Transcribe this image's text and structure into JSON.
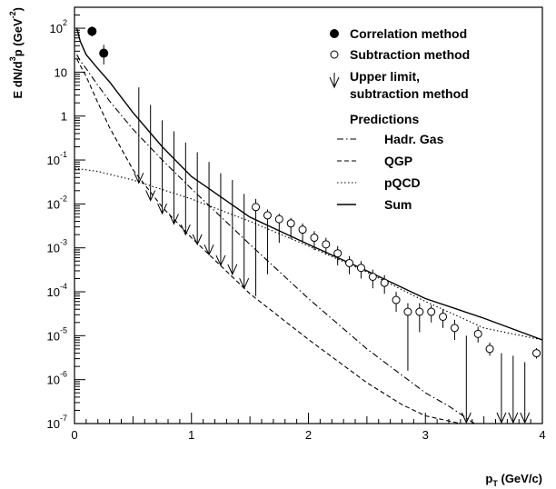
{
  "chart_data": {
    "type": "scatter",
    "xlabel": {
      "main": "p",
      "sub": "T",
      "units": "(GeV/c)"
    },
    "ylabel": {
      "prefix": "E dN/d",
      "sup1": "3",
      "mid": "p  (GeV",
      "sup2": "-2",
      "suffix": ")"
    },
    "xlim": [
      0,
      4
    ],
    "ylim": [
      1e-07,
      300
    ],
    "y_scale": "log",
    "x_ticks": [
      0,
      1,
      2,
      3,
      4
    ],
    "y_ticks": [
      {
        "value": 100,
        "base": "10",
        "exp": "2"
      },
      {
        "value": 10,
        "base": "10",
        "exp": ""
      },
      {
        "value": 1,
        "base": "1",
        "exp": ""
      },
      {
        "value": 0.1,
        "base": "10",
        "exp": "-1"
      },
      {
        "value": 0.01,
        "base": "10",
        "exp": "-2"
      },
      {
        "value": 0.001,
        "base": "10",
        "exp": "-3"
      },
      {
        "value": 0.0001,
        "base": "10",
        "exp": "-4"
      },
      {
        "value": 1e-05,
        "base": "10",
        "exp": "-5"
      },
      {
        "value": 1e-06,
        "base": "10",
        "exp": "-6"
      },
      {
        "value": 1e-07,
        "base": "10",
        "exp": "-7"
      }
    ],
    "grid": false,
    "legend_position": "top-right",
    "legend": {
      "correlation": "Correlation method",
      "subtraction": "Subtraction method",
      "upper_limit_line1": "Upper limit,",
      "upper_limit_line2": "subtraction method",
      "predictions_header": "Predictions",
      "hadr_gas": "Hadr. Gas",
      "qgp": "QGP",
      "pqcd": "pQCD",
      "sum": "Sum"
    },
    "series": [
      {
        "name": "Correlation method",
        "marker": "filled-circle",
        "points": [
          {
            "x": 0.15,
            "y": 85,
            "ylo": 65,
            "yhi": 110
          },
          {
            "x": 0.25,
            "y": 27,
            "ylo": 15,
            "yhi": 42
          }
        ]
      },
      {
        "name": "Subtraction method",
        "marker": "open-circle",
        "points": [
          {
            "x": 1.55,
            "y": 0.0085,
            "ylo": 8e-05,
            "yhi": 0.013
          },
          {
            "x": 1.65,
            "y": 0.0055,
            "ylo": 0.00025,
            "yhi": 0.0075
          },
          {
            "x": 1.75,
            "y": 0.0045,
            "ylo": 0.0013,
            "yhi": 0.006
          },
          {
            "x": 1.85,
            "y": 0.0036,
            "ylo": 0.0016,
            "yhi": 0.0048
          },
          {
            "x": 1.95,
            "y": 0.0026,
            "ylo": 0.0014,
            "yhi": 0.0036
          },
          {
            "x": 2.05,
            "y": 0.0017,
            "ylo": 0.0009,
            "yhi": 0.0024
          },
          {
            "x": 2.15,
            "y": 0.0012,
            "ylo": 0.0007,
            "yhi": 0.0017
          },
          {
            "x": 2.25,
            "y": 0.00075,
            "ylo": 0.0004,
            "yhi": 0.0011
          },
          {
            "x": 2.35,
            "y": 0.00045,
            "ylo": 0.00025,
            "yhi": 0.00065
          },
          {
            "x": 2.45,
            "y": 0.00035,
            "ylo": 0.0002,
            "yhi": 0.0005
          },
          {
            "x": 2.55,
            "y": 0.00022,
            "ylo": 0.00012,
            "yhi": 0.00032
          },
          {
            "x": 2.65,
            "y": 0.00016,
            "ylo": 9e-05,
            "yhi": 0.00024
          },
          {
            "x": 2.75,
            "y": 6.5e-05,
            "ylo": 3.5e-05,
            "yhi": 0.0001
          },
          {
            "x": 2.85,
            "y": 3.5e-05,
            "ylo": 1.6e-06,
            "yhi": 5.5e-05
          },
          {
            "x": 2.95,
            "y": 3.5e-05,
            "ylo": 1.2e-05,
            "yhi": 5.5e-05
          },
          {
            "x": 3.05,
            "y": 3.5e-05,
            "ylo": 2e-05,
            "yhi": 5e-05
          },
          {
            "x": 3.15,
            "y": 2.7e-05,
            "ylo": 1.5e-05,
            "yhi": 4e-05
          },
          {
            "x": 3.25,
            "y": 1.5e-05,
            "ylo": 8e-06,
            "yhi": 2.3e-05
          },
          {
            "x": 3.45,
            "y": 1.1e-05,
            "ylo": 7e-06,
            "yhi": 1.6e-05
          },
          {
            "x": 3.55,
            "y": 5e-06,
            "ylo": 3.5e-06,
            "yhi": 7e-06
          },
          {
            "x": 3.95,
            "y": 4e-06,
            "ylo": 3e-06,
            "yhi": 5.2e-06
          }
        ]
      },
      {
        "name": "Upper limit, subtraction method",
        "marker": "down-arrow",
        "points": [
          {
            "x": 0.55,
            "y": 4.5,
            "yto": 0.03
          },
          {
            "x": 0.65,
            "y": 1.8,
            "yto": 0.012
          },
          {
            "x": 0.75,
            "y": 0.8,
            "yto": 0.006
          },
          {
            "x": 0.85,
            "y": 0.45,
            "yto": 0.0035
          },
          {
            "x": 0.95,
            "y": 0.25,
            "yto": 0.002
          },
          {
            "x": 1.05,
            "y": 0.15,
            "yto": 0.0012
          },
          {
            "x": 1.15,
            "y": 0.09,
            "yto": 0.0007
          },
          {
            "x": 1.25,
            "y": 0.05,
            "yto": 0.0004
          },
          {
            "x": 1.35,
            "y": 0.035,
            "yto": 0.00025
          },
          {
            "x": 1.45,
            "y": 0.017,
            "yto": 0.00012
          },
          {
            "x": 3.35,
            "y": 1e-05,
            "yto": 1e-07
          },
          {
            "x": 3.65,
            "y": 4e-06,
            "yto": 1e-07
          },
          {
            "x": 3.75,
            "y": 3.5e-06,
            "yto": 1e-07
          },
          {
            "x": 3.85,
            "y": 2.5e-06,
            "yto": 1e-07
          }
        ]
      },
      {
        "name": "Hadr. Gas",
        "line": "dash-dot",
        "x": [
          0.02,
          0.05,
          0.1,
          0.2,
          0.3,
          0.5,
          0.75,
          1.0,
          1.5,
          2.0,
          2.5,
          3.0,
          3.2,
          3.42
        ],
        "y": [
          25,
          18,
          12,
          5,
          2.2,
          0.5,
          0.1,
          0.022,
          0.0012,
          7e-05,
          5e-06,
          5e-07,
          2.5e-07,
          1e-07
        ]
      },
      {
        "name": "QGP",
        "line": "dashed",
        "x": [
          0.02,
          0.05,
          0.1,
          0.2,
          0.3,
          0.5,
          0.75,
          1.0,
          1.5,
          2.0,
          2.5,
          2.8,
          3.0,
          3.3
        ],
        "y": [
          20,
          14,
          8,
          2.0,
          0.55,
          0.06,
          0.0085,
          0.0017,
          9e-05,
          8.2e-06,
          8.5e-07,
          2.7e-07,
          1.5e-07,
          1e-07
        ]
      },
      {
        "name": "pQCD",
        "line": "dotted",
        "x": [
          0.0,
          0.2,
          0.5,
          1.0,
          1.5,
          2.0,
          2.5,
          3.0,
          3.5,
          4.0
        ],
        "y": [
          0.065,
          0.055,
          0.035,
          0.013,
          0.004,
          0.0011,
          0.00028,
          6e-05,
          1.5e-05,
          8e-06
        ]
      },
      {
        "name": "Sum",
        "line": "solid",
        "x": [
          0.02,
          0.05,
          0.1,
          0.2,
          0.3,
          0.5,
          0.75,
          1.0,
          1.5,
          2.0,
          2.5,
          3.0,
          3.5,
          4.0
        ],
        "y": [
          100,
          50,
          25,
          12,
          6,
          1.2,
          0.2,
          0.042,
          0.005,
          0.0012,
          0.0003,
          7e-05,
          2.5e-05,
          8e-06
        ]
      }
    ]
  }
}
